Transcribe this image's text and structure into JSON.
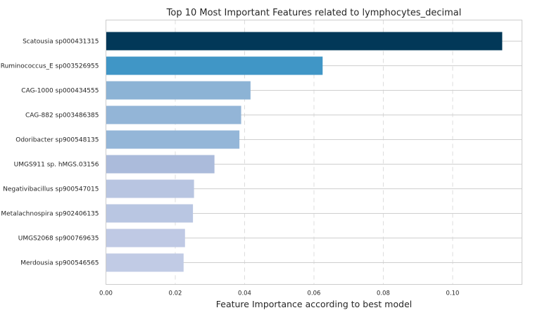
{
  "chart_data": {
    "type": "bar",
    "orientation": "horizontal",
    "title": "Top 10 Most Important Features related to lymphocytes_decimal",
    "xlabel": "Feature Importance according to best model",
    "ylabel": "",
    "xlim": [
      0,
      0.12
    ],
    "xticks": [
      0.0,
      0.02,
      0.04,
      0.06,
      0.08,
      0.1
    ],
    "xtick_labels": [
      "0.00",
      "0.02",
      "0.04",
      "0.06",
      "0.08",
      "0.10"
    ],
    "grid": true,
    "categories": [
      "Scatousia sp000431315",
      "Ruminococcus_E sp003526955",
      "CAG-1000 sp000434555",
      "CAG-882 sp003486385",
      "Odoribacter sp900548135",
      "UMGS911 sp. hMGS.03156",
      "Negativibacillus sp900547015",
      "Metalachnospira sp902406135",
      "UMGS2068 sp900769635",
      "Merdousia sp900546565"
    ],
    "values": [
      0.1143,
      0.0625,
      0.0417,
      0.039,
      0.0385,
      0.0313,
      0.0254,
      0.0251,
      0.0228,
      0.0224
    ],
    "colors": [
      "#023858",
      "#4096c6",
      "#8cb3d5",
      "#93b5d7",
      "#94b6d8",
      "#abbbdb",
      "#b8c5e1",
      "#b9c6e2",
      "#bfc9e4",
      "#c1cbe5"
    ]
  }
}
